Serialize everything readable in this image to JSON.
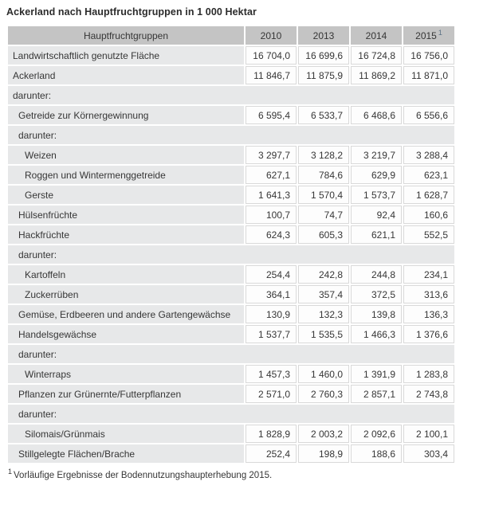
{
  "title": "Ackerland nach Hauptfruchtgruppen in 1 000 Hektar",
  "footnote": {
    "marker": "1",
    "text": "Vorläufige Ergebnisse der Bodennutzungshaupterhebung 2015."
  },
  "colors": {
    "header_bg": "#c4c4c4",
    "label_cell_bg": "#e7e8e9",
    "value_cell_bg": "#fdfdfd",
    "cell_border": "#d9d9d9",
    "text": "#363636",
    "footnote_marker": "#5d7286"
  },
  "chart_data": {
    "type": "table",
    "title": "Ackerland nach Hauptfruchtgruppen in 1 000 Hektar",
    "unit": "1 000 Hektar",
    "label_column_header": "Hauptfruchtgruppen",
    "columns": [
      {
        "label": "2010"
      },
      {
        "label": "2013"
      },
      {
        "label": "2014"
      },
      {
        "label": "2015",
        "sup": "1"
      }
    ],
    "rows": [
      {
        "label": "Landwirtschaftlich genutzte Fläche",
        "indent": 0,
        "section": false,
        "values": [
          "16 704,0",
          "16 699,6",
          "16 724,8",
          "16 756,0"
        ]
      },
      {
        "label": "Ackerland",
        "indent": 0,
        "section": false,
        "values": [
          "11 846,7",
          "11 875,9",
          "11 869,2",
          "11 871,0"
        ]
      },
      {
        "label": "darunter:",
        "indent": 0,
        "section": true
      },
      {
        "label": "Getreide zur Körnergewinnung",
        "indent": 1,
        "section": false,
        "values": [
          "6 595,4",
          "6 533,7",
          "6 468,6",
          "6 556,6"
        ]
      },
      {
        "label": "darunter:",
        "indent": 1,
        "section": true
      },
      {
        "label": "Weizen",
        "indent": 2,
        "section": false,
        "values": [
          "3 297,7",
          "3 128,2",
          "3 219,7",
          "3 288,4"
        ]
      },
      {
        "label": "Roggen und Wintermenggetreide",
        "indent": 2,
        "section": false,
        "values": [
          "627,1",
          "784,6",
          "629,9",
          "623,1"
        ]
      },
      {
        "label": "Gerste",
        "indent": 2,
        "section": false,
        "values": [
          "1 641,3",
          "1 570,4",
          "1 573,7",
          "1 628,7"
        ]
      },
      {
        "label": "Hülsenfrüchte",
        "indent": 1,
        "section": false,
        "values": [
          "100,7",
          "74,7",
          "92,4",
          "160,6"
        ]
      },
      {
        "label": "Hackfrüchte",
        "indent": 1,
        "section": false,
        "values": [
          "624,3",
          "605,3",
          "621,1",
          "552,5"
        ]
      },
      {
        "label": "darunter:",
        "indent": 1,
        "section": true
      },
      {
        "label": "Kartoffeln",
        "indent": 2,
        "section": false,
        "values": [
          "254,4",
          "242,8",
          "244,8",
          "234,1"
        ]
      },
      {
        "label": "Zuckerrüben",
        "indent": 2,
        "section": false,
        "values": [
          "364,1",
          "357,4",
          "372,5",
          "313,6"
        ]
      },
      {
        "label": "Gemüse, Erdbeeren und andere Gartengewächse",
        "indent": 1,
        "section": false,
        "values": [
          "130,9",
          "132,3",
          "139,8",
          "136,3"
        ]
      },
      {
        "label": "Handelsgewächse",
        "indent": 1,
        "section": false,
        "values": [
          "1 537,7",
          "1 535,5",
          "1 466,3",
          "1 376,6"
        ]
      },
      {
        "label": "darunter:",
        "indent": 1,
        "section": true
      },
      {
        "label": "Winterraps",
        "indent": 2,
        "section": false,
        "values": [
          "1 457,3",
          "1 460,0",
          "1 391,9",
          "1 283,8"
        ]
      },
      {
        "label": "Pflanzen zur Grünernte/Futterpflanzen",
        "indent": 1,
        "section": false,
        "values": [
          "2 571,0",
          "2 760,3",
          "2 857,1",
          "2 743,8"
        ]
      },
      {
        "label": "darunter:",
        "indent": 1,
        "section": true
      },
      {
        "label": "Silomais/Grünmais",
        "indent": 2,
        "section": false,
        "values": [
          "1 828,9",
          "2 003,2",
          "2 092,6",
          "2 100,1"
        ]
      },
      {
        "label": "Stillgelegte Flächen/Brache",
        "indent": 1,
        "section": false,
        "values": [
          "252,4",
          "198,9",
          "188,6",
          "303,4"
        ]
      }
    ]
  }
}
